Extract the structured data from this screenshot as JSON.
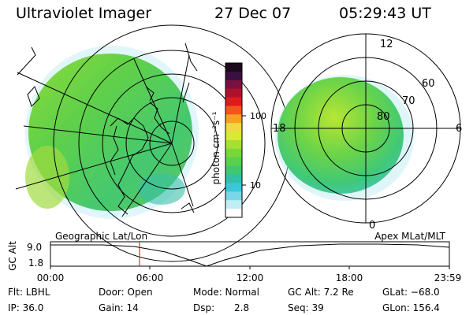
{
  "header": {
    "instrument": "Ultraviolet Imager",
    "date": "27 Dec 07",
    "time": "05:29:43 UT"
  },
  "colorbar": {
    "unit_label": "photon cm⁻²s⁻¹",
    "ticks": [
      "100",
      "10"
    ],
    "colors": [
      "#1a0a1a",
      "#3a1040",
      "#7a1040",
      "#b0102a",
      "#e01a1a",
      "#f4551a",
      "#f8a020",
      "#f0d840",
      "#d8ea30",
      "#a6e030",
      "#78d838",
      "#5ad050",
      "#40c870",
      "#30c0a8",
      "#38c8d8",
      "#78d8e8",
      "#c0eef4",
      "#ffffff"
    ]
  },
  "polar_plot": {
    "lat_labels": [
      "80",
      "70",
      "60"
    ],
    "mlt_labels": [
      "12",
      "18",
      "6",
      "0"
    ]
  },
  "timeline": {
    "y_axis_label": "GC Alt",
    "y_ticks": [
      "9.0",
      "1.8"
    ],
    "left_label": "Geographic Lat/Lon",
    "right_label": "Apex MLat/MLT",
    "x_ticks": [
      "00:00",
      "06:00",
      "12:00",
      "18:00",
      "23:59"
    ],
    "marker_color": "#e00000"
  },
  "info": {
    "filter": "Flt: LBHL",
    "door": "Door: Open",
    "mode": "Mode: Normal",
    "gc_alt": "GC Alt: 7.2 Re",
    "glat": "GLat: −68.0",
    "ip": "IP: 36.0",
    "gain": "Gain: 14",
    "dsp_label": "Dsp:",
    "dsp_value": "2.8",
    "seq": "Seq: 39",
    "glon": "GLon: 156.4"
  }
}
